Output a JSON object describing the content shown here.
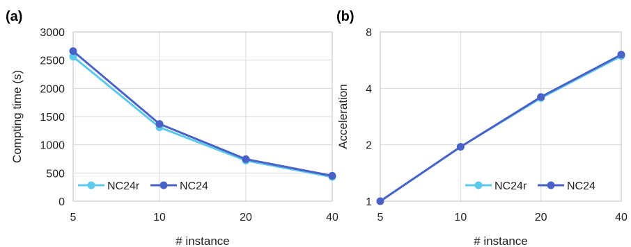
{
  "chart_data": [
    {
      "type": "line",
      "panel_label": "(a)",
      "xlabel": "# instance",
      "ylabel": "Compting time (s)",
      "x_scale": "log2",
      "categories": [
        "5",
        "10",
        "20",
        "40"
      ],
      "x": [
        5,
        10,
        20,
        40
      ],
      "ylim": [
        0,
        3000
      ],
      "yticks": [
        "0",
        "500",
        "1000",
        "1500",
        "2000",
        "2500",
        "3000"
      ],
      "ytick_values": [
        0,
        500,
        1000,
        1500,
        2000,
        2500,
        3000
      ],
      "grid": true,
      "legend_position": "bottom-left",
      "series": [
        {
          "name": "NC24r",
          "color": "#5bc8ec",
          "values": [
            2560,
            1310,
            720,
            430
          ]
        },
        {
          "name": "NC24",
          "color": "#4a62c8",
          "values": [
            2660,
            1370,
            745,
            450
          ]
        }
      ]
    },
    {
      "type": "line",
      "panel_label": "(b)",
      "xlabel": "# instance",
      "ylabel": "Acceleration",
      "x_scale": "log2",
      "y_scale": "log2",
      "categories": [
        "5",
        "10",
        "20",
        "40"
      ],
      "x": [
        5,
        10,
        20,
        40
      ],
      "ylim": [
        1,
        8
      ],
      "yticks": [
        "1",
        "2",
        "4",
        "8"
      ],
      "ytick_values": [
        1,
        2,
        4,
        8
      ],
      "grid": true,
      "legend_position": "bottom-right",
      "series": [
        {
          "name": "NC24r",
          "color": "#5bc8ec",
          "values": [
            1,
            1.95,
            3.55,
            5.95
          ]
        },
        {
          "name": "NC24",
          "color": "#4a62c8",
          "values": [
            1,
            1.95,
            3.6,
            6.05
          ]
        }
      ]
    }
  ]
}
